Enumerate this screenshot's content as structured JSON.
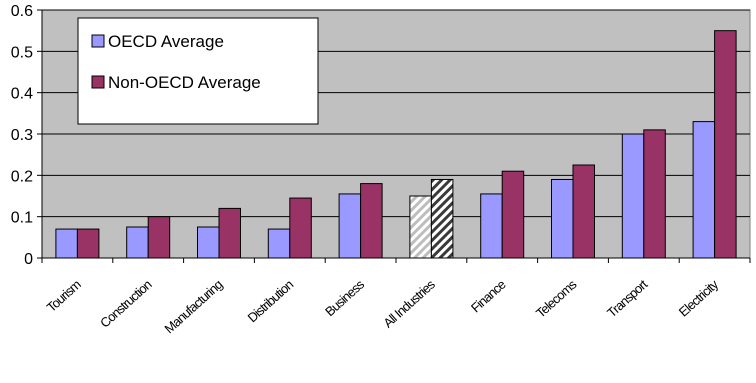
{
  "chart_data": {
    "type": "bar",
    "title": "",
    "xlabel": "",
    "ylabel": "",
    "ylim": [
      0,
      0.6
    ],
    "yticks": [
      "0",
      "0.1",
      "0.2",
      "0.3",
      "0.4",
      "0.5",
      "0.6"
    ],
    "grid": true,
    "legend_position": "top-left",
    "categories": [
      "Tourism",
      "Construction",
      "Manufacturing",
      "Distribution",
      "Business",
      "All Industries",
      "Finance",
      "Telecoms",
      "Transport",
      "Electricity"
    ],
    "highlighted_category": "All Industries",
    "series": [
      {
        "name": "OECD Average",
        "color": "#9999ff",
        "values": [
          0.07,
          0.075,
          0.075,
          0.07,
          0.155,
          0.15,
          0.155,
          0.19,
          0.3,
          0.33
        ]
      },
      {
        "name": "Non-OECD Average",
        "color": "#993366",
        "values": [
          0.07,
          0.1,
          0.12,
          0.145,
          0.18,
          0.19,
          0.21,
          0.225,
          0.31,
          0.55
        ]
      }
    ],
    "plot_background": "#c0c0c0"
  }
}
